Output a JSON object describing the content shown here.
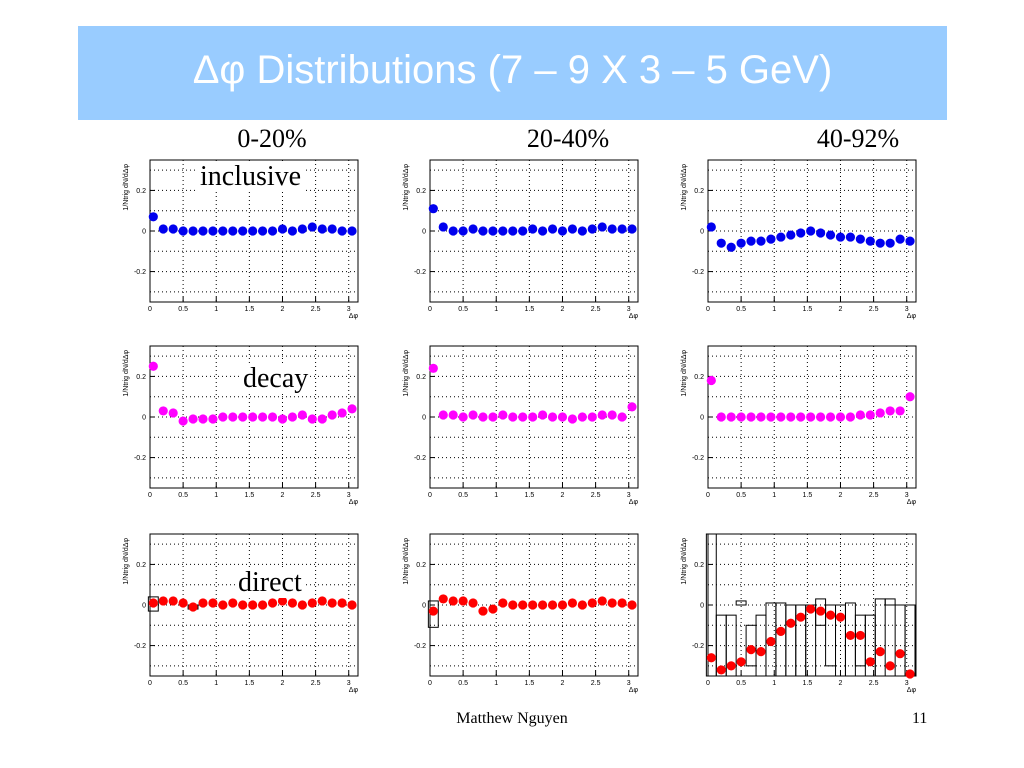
{
  "slide": {
    "title": "Δφ Distributions (7 – 9 X 3 – 5 GeV)",
    "columns": [
      "0-20%",
      "20-40%",
      "40-92%"
    ],
    "row_labels": [
      "inclusive",
      "decay",
      "direct"
    ],
    "author": "Matthew Nguyen",
    "page_number": "11"
  },
  "colors": {
    "title_bar": "#99ccff",
    "inclusive": "#0000ee",
    "decay": "#ff00ff",
    "direct": "#ff0000"
  },
  "chart_data": [
    {
      "type": "scatter",
      "row": 0,
      "col": 0,
      "color": "#0000ee",
      "ylabel": "1/Ntrig dN/dΔφ",
      "xlabel": "Δφ",
      "xlim": [
        0,
        3.14
      ],
      "ylim": [
        -0.35,
        0.35
      ],
      "yticks": [
        0.2,
        0,
        -0.2
      ],
      "ytick_labels": [
        "0.2",
        "0",
        "-0.2"
      ],
      "xticks": [
        0,
        0.5,
        1,
        1.5,
        2,
        2.5,
        3
      ],
      "xtick_labels": [
        "0",
        "0.5",
        "1",
        "1.5",
        "2",
        "2.5",
        "3"
      ],
      "x": [
        0.05,
        0.2,
        0.35,
        0.5,
        0.65,
        0.8,
        0.95,
        1.1,
        1.25,
        1.4,
        1.55,
        1.7,
        1.85,
        2.0,
        2.15,
        2.3,
        2.45,
        2.6,
        2.75,
        2.9,
        3.05
      ],
      "y": [
        0.07,
        0.01,
        0.01,
        0.0,
        0.0,
        0.0,
        0.0,
        0.0,
        0.0,
        0.0,
        0.0,
        0.0,
        0.0,
        0.01,
        0.0,
        0.01,
        0.02,
        0.01,
        0.01,
        0.0,
        0.0
      ]
    },
    {
      "type": "scatter",
      "row": 0,
      "col": 1,
      "color": "#0000ee",
      "ylabel": "1/Ntrig dN/dΔφ",
      "xlabel": "Δφ",
      "xlim": [
        0,
        3.14
      ],
      "ylim": [
        -0.35,
        0.35
      ],
      "yticks": [
        0.2,
        0,
        -0.2
      ],
      "ytick_labels": [
        "0.2",
        "0",
        "-0.2"
      ],
      "xticks": [
        0,
        0.5,
        1,
        1.5,
        2,
        2.5,
        3
      ],
      "xtick_labels": [
        "0",
        "0.5",
        "1",
        "1.5",
        "2",
        "2.5",
        "3"
      ],
      "x": [
        0.05,
        0.2,
        0.35,
        0.5,
        0.65,
        0.8,
        0.95,
        1.1,
        1.25,
        1.4,
        1.55,
        1.7,
        1.85,
        2.0,
        2.15,
        2.3,
        2.45,
        2.6,
        2.75,
        2.9,
        3.05
      ],
      "y": [
        0.11,
        0.02,
        0.0,
        0.0,
        0.01,
        0.0,
        0.0,
        0.0,
        0.0,
        0.0,
        0.01,
        0.0,
        0.01,
        0.0,
        0.01,
        0.0,
        0.01,
        0.02,
        0.01,
        0.01,
        0.01
      ]
    },
    {
      "type": "scatter",
      "row": 0,
      "col": 2,
      "color": "#0000ee",
      "ylabel": "1/Ntrig dN/dΔφ",
      "xlabel": "Δφ",
      "xlim": [
        0,
        3.14
      ],
      "ylim": [
        -0.35,
        0.35
      ],
      "yticks": [
        0.2,
        0,
        -0.2
      ],
      "ytick_labels": [
        "0.2",
        "0",
        "-0.2"
      ],
      "xticks": [
        0,
        0.5,
        1,
        1.5,
        2,
        2.5,
        3
      ],
      "xtick_labels": [
        "0",
        "0.5",
        "1",
        "1.5",
        "2",
        "2.5",
        "3"
      ],
      "x": [
        0.05,
        0.2,
        0.35,
        0.5,
        0.65,
        0.8,
        0.95,
        1.1,
        1.25,
        1.4,
        1.55,
        1.7,
        1.85,
        2.0,
        2.15,
        2.3,
        2.45,
        2.6,
        2.75,
        2.9,
        3.05
      ],
      "y": [
        0.02,
        -0.06,
        -0.08,
        -0.06,
        -0.05,
        -0.05,
        -0.04,
        -0.03,
        -0.02,
        -0.01,
        0.0,
        -0.01,
        -0.02,
        -0.03,
        -0.03,
        -0.04,
        -0.05,
        -0.06,
        -0.06,
        -0.04,
        -0.05
      ]
    },
    {
      "type": "scatter",
      "row": 1,
      "col": 0,
      "color": "#ff00ff",
      "ylabel": "1/Ntrig dN/dΔφ",
      "xlabel": "Δφ",
      "xlim": [
        0,
        3.14
      ],
      "ylim": [
        -0.35,
        0.35
      ],
      "yticks": [
        0.2,
        0,
        -0.2
      ],
      "ytick_labels": [
        "0.2",
        "0",
        "-0.2"
      ],
      "xticks": [
        0,
        0.5,
        1,
        1.5,
        2,
        2.5,
        3
      ],
      "xtick_labels": [
        "0",
        "0.5",
        "1",
        "1.5",
        "2",
        "2.5",
        "3"
      ],
      "x": [
        0.05,
        0.2,
        0.35,
        0.5,
        0.65,
        0.8,
        0.95,
        1.1,
        1.25,
        1.4,
        1.55,
        1.7,
        1.85,
        2.0,
        2.15,
        2.3,
        2.45,
        2.6,
        2.75,
        2.9,
        3.05
      ],
      "y": [
        0.25,
        0.03,
        0.02,
        -0.02,
        -0.01,
        -0.01,
        -0.01,
        0.0,
        0.0,
        0.0,
        0.0,
        0.0,
        0.0,
        -0.01,
        0.0,
        0.01,
        -0.01,
        -0.01,
        0.01,
        0.02,
        0.04
      ]
    },
    {
      "type": "scatter",
      "row": 1,
      "col": 1,
      "color": "#ff00ff",
      "ylabel": "1/Ntrig dN/dΔφ",
      "xlabel": "Δφ",
      "xlim": [
        0,
        3.14
      ],
      "ylim": [
        -0.35,
        0.35
      ],
      "yticks": [
        0.2,
        0,
        -0.2
      ],
      "ytick_labels": [
        "0.2",
        "0",
        "-0.2"
      ],
      "xticks": [
        0,
        0.5,
        1,
        1.5,
        2,
        2.5,
        3
      ],
      "xtick_labels": [
        "0",
        "0.5",
        "1",
        "1.5",
        "2",
        "2.5",
        "3"
      ],
      "x": [
        0.05,
        0.2,
        0.35,
        0.5,
        0.65,
        0.8,
        0.95,
        1.1,
        1.25,
        1.4,
        1.55,
        1.7,
        1.85,
        2.0,
        2.15,
        2.3,
        2.45,
        2.6,
        2.75,
        2.9,
        3.05
      ],
      "y": [
        0.24,
        0.01,
        0.01,
        0.0,
        0.01,
        0.0,
        0.0,
        0.01,
        0.0,
        0.0,
        0.0,
        0.01,
        0.0,
        0.0,
        -0.01,
        0.0,
        0.0,
        0.01,
        0.01,
        0.0,
        0.05
      ]
    },
    {
      "type": "scatter",
      "row": 1,
      "col": 2,
      "color": "#ff00ff",
      "ylabel": "1/Ntrig dN/dΔφ",
      "xlabel": "Δφ",
      "xlim": [
        0,
        3.14
      ],
      "ylim": [
        -0.35,
        0.35
      ],
      "yticks": [
        0.2,
        0,
        -0.2
      ],
      "ytick_labels": [
        "0.2",
        "0",
        "-0.2"
      ],
      "xticks": [
        0,
        0.5,
        1,
        1.5,
        2,
        2.5,
        3
      ],
      "xtick_labels": [
        "0",
        "0.5",
        "1",
        "1.5",
        "2",
        "2.5",
        "3"
      ],
      "x": [
        0.05,
        0.2,
        0.35,
        0.5,
        0.65,
        0.8,
        0.95,
        1.1,
        1.25,
        1.4,
        1.55,
        1.7,
        1.85,
        2.0,
        2.15,
        2.3,
        2.45,
        2.6,
        2.75,
        2.9,
        3.05
      ],
      "y": [
        0.18,
        0.0,
        0.0,
        0.0,
        0.0,
        0.0,
        0.0,
        0.0,
        0.0,
        0.0,
        0.0,
        0.0,
        0.0,
        0.0,
        0.0,
        0.01,
        0.01,
        0.02,
        0.03,
        0.03,
        0.1
      ]
    },
    {
      "type": "scatter",
      "row": 2,
      "col": 0,
      "color": "#ff0000",
      "ylabel": "1/Ntrig dN/dΔφ",
      "xlabel": "Δφ",
      "xlim": [
        0,
        3.14
      ],
      "ylim": [
        -0.35,
        0.35
      ],
      "yticks": [
        0.2,
        0,
        -0.2
      ],
      "ytick_labels": [
        "0.2",
        "0",
        "-0.2"
      ],
      "xticks": [
        0,
        0.5,
        1,
        1.5,
        2,
        2.5,
        3
      ],
      "xtick_labels": [
        "0",
        "0.5",
        "1",
        "1.5",
        "2",
        "2.5",
        "3"
      ],
      "x": [
        0.05,
        0.2,
        0.35,
        0.5,
        0.65,
        0.8,
        0.95,
        1.1,
        1.25,
        1.4,
        1.55,
        1.7,
        1.85,
        2.0,
        2.15,
        2.3,
        2.45,
        2.6,
        2.75,
        2.9,
        3.05
      ],
      "y": [
        0.01,
        0.02,
        0.02,
        0.01,
        -0.01,
        0.01,
        0.01,
        0.0,
        0.01,
        0.0,
        0.0,
        0.0,
        0.01,
        0.02,
        0.01,
        0.0,
        0.01,
        0.02,
        0.01,
        0.01,
        0.0
      ],
      "err_low": [
        -0.03,
        0.0,
        0.0,
        0.0,
        -0.02,
        0.0,
        0.0,
        0.0,
        0.0,
        0.0,
        0.0,
        0.0,
        0.0,
        0.0,
        0.0,
        0.0,
        0.0,
        0.0,
        0.0,
        0.0,
        0.0
      ],
      "err_high": [
        0.04,
        0.0,
        0.0,
        0.0,
        0.0,
        0.0,
        0.0,
        0.0,
        0.0,
        0.0,
        0.0,
        0.0,
        0.0,
        0.0,
        0.0,
        0.0,
        0.0,
        0.0,
        0.0,
        0.0,
        0.0
      ]
    },
    {
      "type": "scatter",
      "row": 2,
      "col": 1,
      "color": "#ff0000",
      "ylabel": "1/Ntrig dN/dΔφ",
      "xlabel": "Δφ",
      "xlim": [
        0,
        3.14
      ],
      "ylim": [
        -0.35,
        0.35
      ],
      "yticks": [
        0.2,
        0,
        -0.2
      ],
      "ytick_labels": [
        "0.2",
        "0",
        "-0.2"
      ],
      "xticks": [
        0,
        0.5,
        1,
        1.5,
        2,
        2.5,
        3
      ],
      "xtick_labels": [
        "0",
        "0.5",
        "1",
        "1.5",
        "2",
        "2.5",
        "3"
      ],
      "x": [
        0.05,
        0.2,
        0.35,
        0.5,
        0.65,
        0.8,
        0.95,
        1.1,
        1.25,
        1.4,
        1.55,
        1.7,
        1.85,
        2.0,
        2.15,
        2.3,
        2.45,
        2.6,
        2.75,
        2.9,
        3.05
      ],
      "y": [
        -0.03,
        0.03,
        0.02,
        0.02,
        0.01,
        -0.03,
        -0.02,
        0.01,
        0.0,
        0.0,
        0.0,
        0.0,
        0.0,
        0.0,
        0.01,
        0.0,
        0.01,
        0.02,
        0.01,
        0.01,
        0.0
      ],
      "err_low": [
        -0.11,
        0.0,
        0.0,
        0.0,
        0.0,
        0.0,
        0.0,
        0.0,
        0.0,
        0.0,
        0.0,
        0.0,
        0.0,
        0.0,
        0.0,
        0.0,
        0.0,
        0.0,
        0.0,
        0.0,
        0.0
      ],
      "err_high": [
        0.02,
        0.0,
        0.0,
        0.0,
        0.0,
        0.0,
        0.0,
        0.0,
        0.0,
        0.0,
        0.0,
        0.0,
        0.0,
        0.0,
        0.0,
        0.0,
        0.0,
        0.0,
        0.0,
        0.0,
        0.0
      ]
    },
    {
      "type": "scatter",
      "row": 2,
      "col": 2,
      "color": "#ff0000",
      "ylabel": "1/Ntrig dN/dΔφ",
      "xlabel": "Δφ",
      "xlim": [
        0,
        3.14
      ],
      "ylim": [
        -0.35,
        0.35
      ],
      "yticks": [
        0.2,
        0,
        -0.2
      ],
      "ytick_labels": [
        "0.2",
        "0",
        "-0.2"
      ],
      "xticks": [
        0,
        0.5,
        1,
        1.5,
        2,
        2.5,
        3
      ],
      "xtick_labels": [
        "0",
        "0.5",
        "1",
        "1.5",
        "2",
        "2.5",
        "3"
      ],
      "x": [
        0.05,
        0.2,
        0.35,
        0.5,
        0.65,
        0.8,
        0.95,
        1.1,
        1.25,
        1.4,
        1.55,
        1.7,
        1.85,
        2.0,
        2.15,
        2.3,
        2.45,
        2.6,
        2.75,
        2.9,
        3.05
      ],
      "y": [
        -0.26,
        -0.32,
        -0.3,
        -0.28,
        -0.22,
        -0.23,
        -0.18,
        -0.13,
        -0.09,
        -0.06,
        -0.02,
        -0.03,
        -0.05,
        -0.06,
        -0.15,
        -0.15,
        -0.28,
        -0.23,
        -0.3,
        -0.24,
        -0.34
      ],
      "err_low": [
        -0.35,
        -0.35,
        -0.35,
        0.0,
        -0.3,
        -0.35,
        -0.35,
        -0.35,
        -0.35,
        -0.35,
        -0.35,
        -0.1,
        -0.3,
        -0.35,
        -0.35,
        -0.3,
        -0.35,
        -0.35,
        0.0,
        -0.35,
        -0.35
      ],
      "err_high": [
        0.35,
        -0.05,
        -0.05,
        0.02,
        -0.1,
        -0.05,
        0.01,
        0.01,
        0.0,
        0.0,
        0.0,
        0.03,
        0.0,
        0.0,
        0.01,
        -0.05,
        -0.05,
        0.03,
        0.03,
        0.0,
        0.0
      ]
    }
  ]
}
